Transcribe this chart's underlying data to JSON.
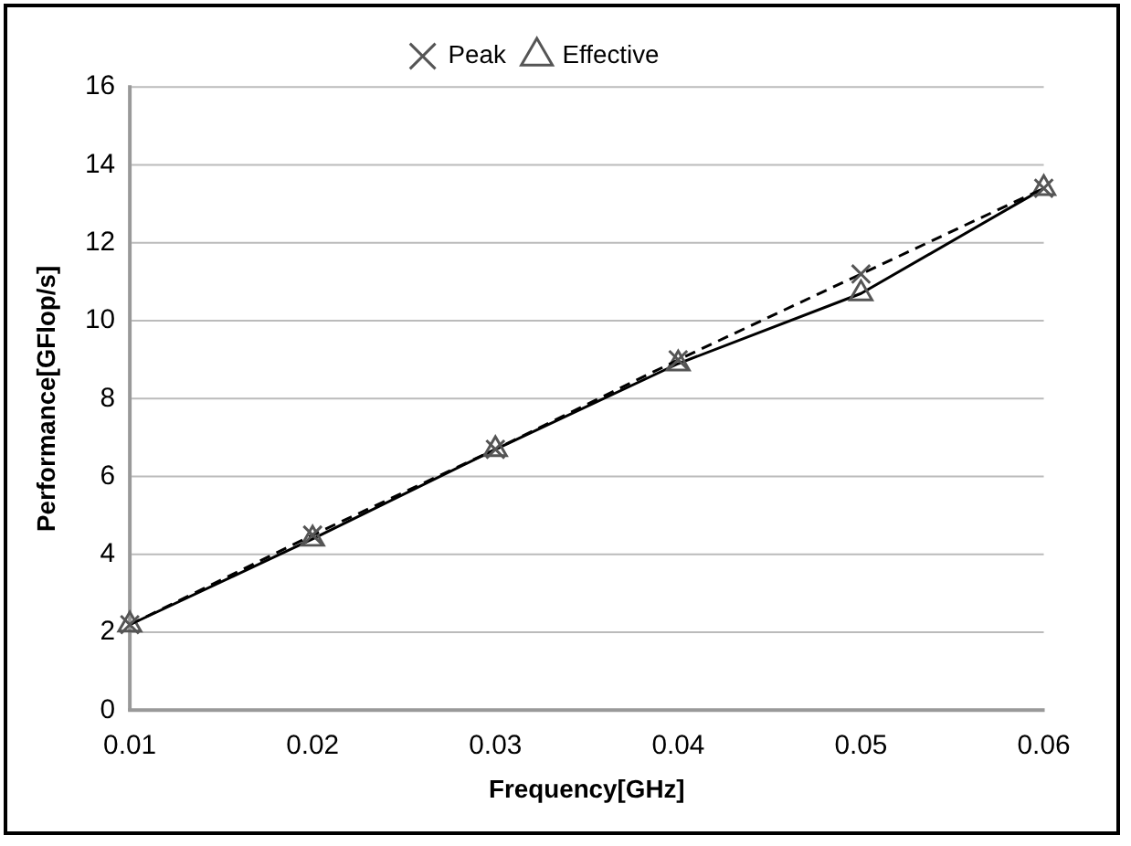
{
  "chart_data": {
    "type": "line",
    "xlabel": "Frequency[GHz]",
    "ylabel": "Performance[GFlop/s]",
    "categories": [
      "0.01",
      "0.02",
      "0.03",
      "0.04",
      "0.05",
      "0.06"
    ],
    "series": [
      {
        "name": "Peak",
        "color": "#000000",
        "marker": "cross",
        "line_style": "dashed",
        "values": [
          2.2,
          4.5,
          6.7,
          9.0,
          11.2,
          13.4
        ]
      },
      {
        "name": "Effective",
        "color": "#000000",
        "marker": "triangle",
        "line_style": "solid",
        "values": [
          2.2,
          4.4,
          6.7,
          8.9,
          10.7,
          13.4
        ]
      }
    ],
    "ylim": [
      0,
      16
    ],
    "yticks": [
      0,
      2,
      4,
      6,
      8,
      10,
      12,
      14,
      16
    ],
    "grid": "y",
    "legend": "top"
  }
}
